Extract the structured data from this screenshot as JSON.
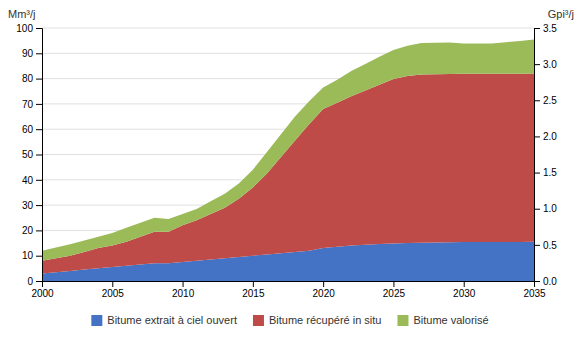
{
  "chart_data": {
    "type": "area",
    "stacked": true,
    "x": [
      2000,
      2001,
      2002,
      2003,
      2004,
      2005,
      2006,
      2007,
      2008,
      2009,
      2010,
      2011,
      2012,
      2013,
      2014,
      2015,
      2016,
      2017,
      2018,
      2019,
      2020,
      2021,
      2022,
      2023,
      2024,
      2025,
      2026,
      2027,
      2028,
      2029,
      2030,
      2031,
      2032,
      2033,
      2034,
      2035
    ],
    "series": [
      {
        "name": "Bitume extrait à ciel ouvert",
        "color": "#4472C4",
        "values": [
          3.0,
          3.5,
          4.0,
          4.5,
          5.0,
          5.5,
          6.0,
          6.5,
          7.0,
          7.0,
          7.5,
          8.0,
          8.5,
          9.0,
          9.5,
          10.0,
          10.5,
          11.0,
          11.5,
          12.0,
          13.0,
          13.5,
          14.0,
          14.3,
          14.6,
          14.8,
          15.0,
          15.1,
          15.2,
          15.3,
          15.4,
          15.4,
          15.4,
          15.4,
          15.4,
          15.5
        ]
      },
      {
        "name": "Bitume récupéré in situ",
        "color": "#BE4B48",
        "values": [
          5.0,
          5.5,
          6.0,
          7.0,
          8.0,
          8.5,
          9.5,
          11.0,
          12.5,
          12.5,
          14.5,
          16.0,
          18.0,
          20.0,
          23.0,
          27.0,
          32.0,
          38.0,
          44.0,
          50.0,
          55.0,
          57.0,
          59.0,
          61.0,
          63.0,
          65.0,
          66.0,
          66.5,
          66.5,
          66.5,
          66.5,
          66.5,
          66.5,
          66.5,
          66.5,
          66.5
        ]
      },
      {
        "name": "Bitume valorisé",
        "color": "#9BBB59",
        "values": [
          4.0,
          4.2,
          4.5,
          4.5,
          4.5,
          5.0,
          5.5,
          5.5,
          5.5,
          5.0,
          4.5,
          4.5,
          5.0,
          5.5,
          6.0,
          7.0,
          8.5,
          9.0,
          9.5,
          9.0,
          8.5,
          9.0,
          10.0,
          10.5,
          11.0,
          11.5,
          12.0,
          12.5,
          12.5,
          12.5,
          12.0,
          12.0,
          12.0,
          12.5,
          13.0,
          13.5
        ]
      }
    ],
    "xlim": [
      2000,
      2035
    ],
    "xticks": [
      2000,
      2005,
      2010,
      2015,
      2020,
      2025,
      2030,
      2035
    ],
    "ylim": [
      0,
      100
    ],
    "yticks": [
      0,
      10,
      20,
      30,
      40,
      50,
      60,
      70,
      80,
      90,
      100
    ],
    "ylabel": "Mm³/j",
    "y2lim": [
      0.0,
      3.5
    ],
    "y2ticks": [
      {
        "value": 0,
        "label": "0.0"
      },
      0.5,
      {
        "value": 1,
        "label": "1.0"
      },
      1.5,
      {
        "value": 2,
        "label": "2.0"
      },
      2.5,
      {
        "value": 3,
        "label": "3.0"
      },
      3.5
    ],
    "y2label": "Gpi³/j",
    "grid": true,
    "legend": "bottom"
  }
}
